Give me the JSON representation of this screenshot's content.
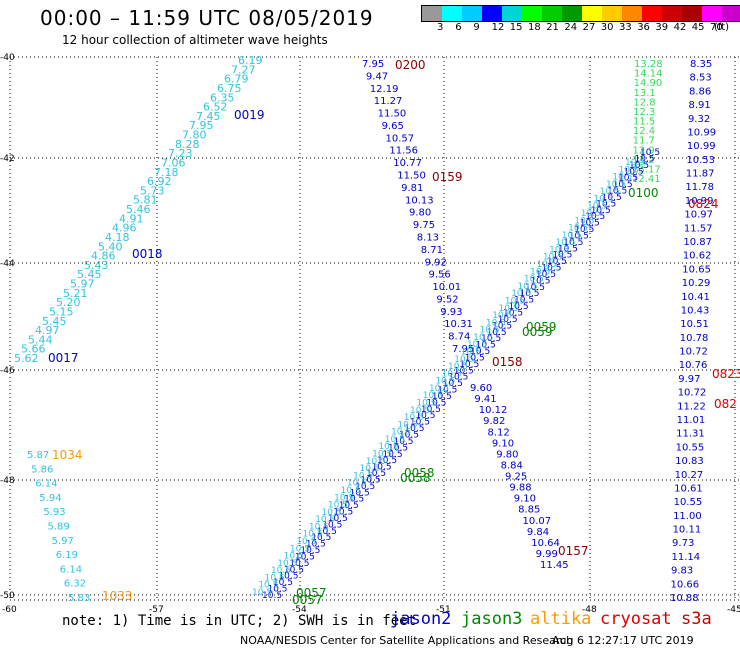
{
  "header": {
    "title": "00:00 – 11:59 UTC 08/05/2019",
    "subtitle": "12 hour collection of altimeter wave heights"
  },
  "legend": {
    "colors": [
      "#999999",
      "#00ffff",
      "#00ccff",
      "#0000ff",
      "#00d5d5",
      "#00ff00",
      "#00cc00",
      "#009900",
      "#ffff00",
      "#ffcc00",
      "#ff8800",
      "#ff0000",
      "#cc0000",
      "#aa0000",
      "#ff00ff",
      "#cc00cc",
      "#000000"
    ],
    "ticks": [
      "3",
      "6",
      "9",
      "12",
      "15",
      "18",
      "21",
      "24",
      "27",
      "30",
      "33",
      "36",
      "39",
      "42",
      "45",
      "70"
    ],
    "unit": "(ft)"
  },
  "axes": {
    "lat_labels": [
      "-40",
      "-42",
      "-44",
      "-46",
      "-48",
      "-50"
    ],
    "lon_labels": [
      "-60",
      "-57",
      "-54",
      "-51",
      "-48",
      "-45"
    ]
  },
  "footer": {
    "note": "note: 1) Time is in UTC; 2) SWH is in feet",
    "satellites": [
      {
        "name": "jason2",
        "color": "#0000cc"
      },
      {
        "name": "jason3",
        "color": "#008800"
      },
      {
        "name": "altika",
        "color": "#ff9900"
      },
      {
        "name": "cryosat",
        "color": "#dd0000"
      },
      {
        "name": "s3a",
        "color": "#cc0000"
      }
    ],
    "credit": "NOAA/NESDIS Center for Satellite Applications and Research",
    "timestamp": "Aug  6 12:27:17 UTC 2019"
  },
  "tracks": [
    {
      "id": "t_cyan_a",
      "color": "#33c3e0",
      "values": [
        "6.19",
        "7.27",
        "6.79",
        "6.75",
        "6.35",
        "6.52",
        "7.45",
        "7.95",
        "7.80",
        "8.28",
        "7.23",
        "7.06",
        "7.18",
        "6.92",
        "5.73",
        "5.81",
        "5.46",
        "4.91",
        "4.96",
        "4.18",
        "5.40",
        "4.86",
        "5.43",
        "5.45",
        "5.97",
        "5.21",
        "5.20",
        "5.15",
        "5.45",
        "4.97",
        "5.44",
        "5.66",
        "5.62"
      ]
    },
    {
      "id": "t_cyan_b",
      "color": "#33c3e0",
      "values": [
        "5.87",
        "5.86",
        "6.14",
        "5.94",
        "5.93",
        "5.89",
        "5.97",
        "6.19",
        "6.14",
        "6.32",
        "5.83"
      ]
    },
    {
      "id": "t_right_green",
      "color": "#33dd55",
      "values": [
        "13.28",
        "14.14",
        "14.90",
        "13.1",
        "12.8",
        "12.3",
        "11.5",
        "12.4",
        "11.7",
        "12.9",
        "13.2",
        "13.17",
        "12.41"
      ]
    },
    {
      "id": "t_right_blue",
      "color": "#0000cc",
      "values": [
        "8.35",
        "8.53",
        "8.86",
        "8.91",
        "9.32",
        "10.99",
        "10.99",
        "10.53",
        "11.87",
        "11.78",
        "10.99",
        "10.97",
        "11.57",
        "10.87",
        "10.62",
        "10.65",
        "10.29",
        "10.41",
        "10.43",
        "10.51",
        "10.78",
        "10.72",
        "10.76",
        "9.97",
        "10.72",
        "11.22",
        "11.01",
        "11.31",
        "10.55",
        "10.83",
        "10.27",
        "10.61",
        "10.55",
        "11.00",
        "10.11",
        "9.73",
        "11.14",
        "9.83",
        "10.66",
        "10.88"
      ]
    },
    {
      "id": "t_mid_blue",
      "color": "#0000cc",
      "values": [
        "7.95",
        "9.47",
        "12.19",
        "11.27",
        "11.50",
        "9.65",
        "10.57",
        "11.56",
        "10.77",
        "11.50",
        "9.81",
        "10.13",
        "9.80",
        "9.75",
        "8.13",
        "8.71",
        "9.92",
        "9.56",
        "10.01",
        "9.52",
        "9.93",
        "10.31",
        "8.74",
        "7.95"
      ]
    },
    {
      "id": "t_mid_blue_b",
      "color": "#0000cc",
      "values": [
        "9.60",
        "9.41",
        "10.12",
        "9.82",
        "8.12",
        "9.10",
        "9.80",
        "8.84",
        "9.25",
        "9.88",
        "9.10",
        "8.85",
        "10.07",
        "9.84",
        "10.64",
        "9.99",
        "11.45"
      ]
    }
  ],
  "time_labels": [
    {
      "text": "0019",
      "color": "#0000cc"
    },
    {
      "text": "0018",
      "color": "#0000cc"
    },
    {
      "text": "0017",
      "color": "#0000cc"
    },
    {
      "text": "0200",
      "color": "#880000"
    },
    {
      "text": "0159",
      "color": "#880000"
    },
    {
      "text": "0158",
      "color": "#880000"
    },
    {
      "text": "0157",
      "color": "#880000"
    },
    {
      "text": "0100",
      "color": "#008800"
    },
    {
      "text": "0059",
      "color": "#008800"
    },
    {
      "text": "0059",
      "color": "#008800"
    },
    {
      "text": "0058",
      "color": "#008800"
    },
    {
      "text": "0058",
      "color": "#008800"
    },
    {
      "text": "0057",
      "color": "#008800"
    },
    {
      "text": "0057",
      "color": "#008800"
    },
    {
      "text": "0824",
      "color": "#dd0000"
    },
    {
      "text": "0823",
      "color": "#dd0000"
    },
    {
      "text": "082",
      "color": "#dd0000"
    },
    {
      "text": "1034",
      "color": "#ff9900"
    },
    {
      "text": "1033",
      "color": "#ff9900"
    }
  ]
}
